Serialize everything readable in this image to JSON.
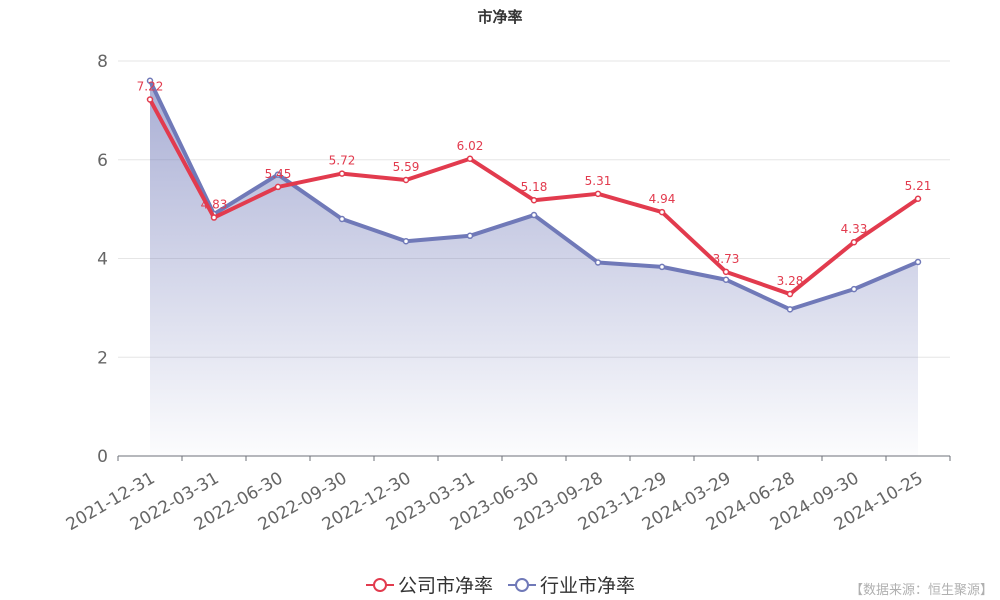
{
  "chart_data": {
    "type": "line",
    "title": "市净率",
    "categories": [
      "2021-12-31",
      "2022-03-31",
      "2022-06-30",
      "2022-09-30",
      "2022-12-30",
      "2023-03-31",
      "2023-06-30",
      "2023-09-28",
      "2023-12-29",
      "2024-03-29",
      "2024-06-28",
      "2024-09-30",
      "2024-10-25"
    ],
    "ylim": [
      0,
      8
    ],
    "yticks": [
      0,
      2,
      4,
      6,
      8
    ],
    "grid": true,
    "legend_position": "bottom-center",
    "series": [
      {
        "name": "公司市净率",
        "color": "#e23b4e",
        "values": [
          7.22,
          4.83,
          5.45,
          5.72,
          5.59,
          6.02,
          5.18,
          5.31,
          4.94,
          3.73,
          3.28,
          4.33,
          5.21
        ],
        "labels": [
          "7.22",
          "4.83",
          "5.45",
          "5.72",
          "5.59",
          "6.02",
          "5.18",
          "5.31",
          "4.94",
          "3.73",
          "3.28",
          "4.33",
          "5.21"
        ]
      },
      {
        "name": "行业市净率",
        "color": "#7079b8",
        "values": [
          7.6,
          4.9,
          5.7,
          4.8,
          4.35,
          4.46,
          4.88,
          3.92,
          3.83,
          3.57,
          2.97,
          3.38,
          3.93
        ]
      }
    ]
  },
  "source": "【数据来源：恒生聚源】"
}
